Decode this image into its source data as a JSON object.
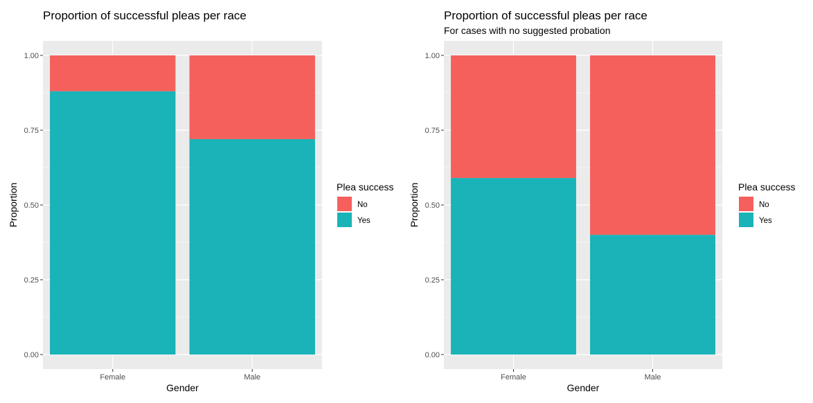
{
  "colors": {
    "No": "#F5605C",
    "Yes": "#19B3B8",
    "panel": "#EBEBEB",
    "grid": "#FFFFFF"
  },
  "chart_data": [
    {
      "type": "bar",
      "stacked": true,
      "title": "Proportion of successful pleas per race",
      "subtitle": "",
      "xlabel": "Gender",
      "ylabel": "Proportion",
      "ylim": [
        0,
        1
      ],
      "yticks": [
        "0.00",
        "0.25",
        "0.50",
        "0.75",
        "1.00"
      ],
      "categories": [
        "Female",
        "Male"
      ],
      "series": [
        {
          "name": "Yes",
          "values": [
            0.88,
            0.72
          ]
        },
        {
          "name": "No",
          "values": [
            0.12,
            0.28
          ]
        }
      ],
      "legend": {
        "title": "Plea success",
        "entries": [
          "No",
          "Yes"
        ],
        "position": "right"
      },
      "grid": true
    },
    {
      "type": "bar",
      "stacked": true,
      "title": "Proportion of successful pleas per race",
      "subtitle": "For cases with no suggested probation",
      "xlabel": "Gender",
      "ylabel": "Proportion",
      "ylim": [
        0,
        1
      ],
      "yticks": [
        "0.00",
        "0.25",
        "0.50",
        "0.75",
        "1.00"
      ],
      "categories": [
        "Female",
        "Male"
      ],
      "series": [
        {
          "name": "Yes",
          "values": [
            0.59,
            0.4
          ]
        },
        {
          "name": "No",
          "values": [
            0.41,
            0.6
          ]
        }
      ],
      "legend": {
        "title": "Plea success",
        "entries": [
          "No",
          "Yes"
        ],
        "position": "right"
      },
      "grid": true
    }
  ]
}
